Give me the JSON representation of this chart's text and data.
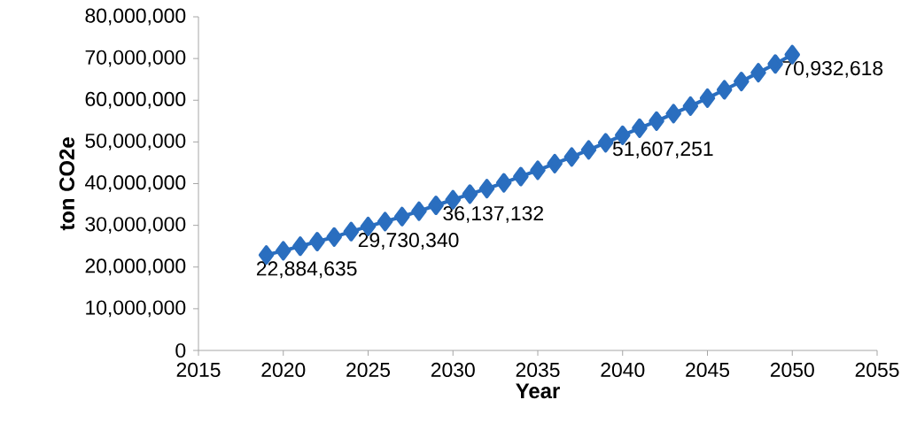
{
  "chart_data": {
    "type": "line",
    "xlabel": "Year",
    "ylabel": "ton CO2e",
    "x": [
      2019,
      2020,
      2021,
      2022,
      2023,
      2024,
      2025,
      2026,
      2027,
      2028,
      2029,
      2030,
      2031,
      2032,
      2033,
      2034,
      2035,
      2036,
      2037,
      2038,
      2039,
      2040,
      2041,
      2042,
      2043,
      2044,
      2045,
      2046,
      2047,
      2048,
      2049,
      2050
    ],
    "values": [
      22884635,
      23900000,
      25000000,
      26100000,
      27200000,
      28500000,
      29730340,
      30900000,
      32100000,
      33400000,
      34800000,
      36137132,
      37500000,
      38800000,
      40200000,
      41700000,
      43200000,
      44800000,
      46400000,
      48100000,
      49800000,
      51607251,
      53300000,
      55000000,
      56800000,
      58600000,
      60500000,
      62500000,
      64500000,
      66600000,
      68700000,
      70932618
    ],
    "value_labels": [
      "22,884,635",
      null,
      null,
      null,
      null,
      null,
      "29,730,340",
      null,
      null,
      null,
      null,
      "36,137,132",
      null,
      null,
      null,
      null,
      null,
      null,
      null,
      null,
      null,
      "51,607,251",
      null,
      null,
      null,
      null,
      null,
      null,
      null,
      null,
      null,
      "70,932,618"
    ],
    "color": "#2a6ebf",
    "marker": "diamond",
    "line_style": "solid",
    "grid": false,
    "xlim": [
      2015,
      2055
    ],
    "xticks": [
      2015,
      2020,
      2025,
      2030,
      2035,
      2040,
      2045,
      2050,
      2055
    ],
    "ylim": [
      0,
      80000000
    ],
    "yticks": [
      {
        "value": 0,
        "label": "0"
      },
      {
        "value": 10000000,
        "label": "10,000,000"
      },
      {
        "value": 20000000,
        "label": "20,000,000"
      },
      {
        "value": 30000000,
        "label": "30,000,000"
      },
      {
        "value": 40000000,
        "label": "40,000,000"
      },
      {
        "value": 50000000,
        "label": "50,000,000"
      },
      {
        "value": 60000000,
        "label": "60,000,000"
      },
      {
        "value": 70000000,
        "label": "70,000,000"
      },
      {
        "value": 80000000,
        "label": "80,000,000"
      }
    ]
  }
}
